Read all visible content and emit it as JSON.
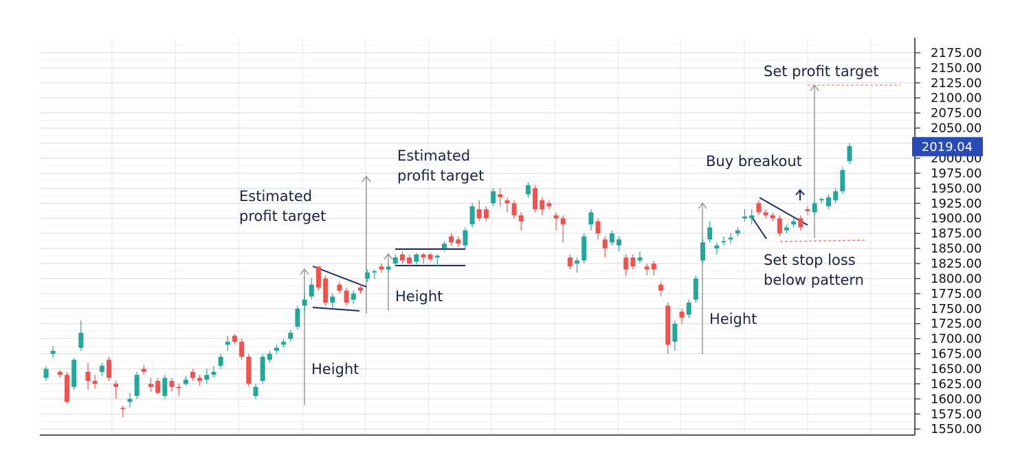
{
  "chart_data": {
    "type": "candlestick",
    "up_color": "#26a69a",
    "down_color": "#ef5350",
    "open": [
      1635,
      1675,
      1645,
      1640,
      1620,
      1685,
      1645,
      1630,
      1645,
      1665,
      1625,
      1585,
      1595,
      1605,
      1650,
      1625,
      1630,
      1605,
      1630,
      1620,
      1625,
      1645,
      1635,
      1632,
      1640,
      1655,
      1690,
      1705,
      1695,
      1670,
      1605,
      1630,
      1665,
      1680,
      1690,
      1700,
      1720,
      1755,
      1770,
      1820,
      1800,
      1760,
      1790,
      1780,
      1765,
      1785,
      1800,
      1810,
      1820,
      1815,
      1825,
      1840,
      1835,
      1828,
      1840,
      1840,
      1835,
      1850,
      1870,
      1865,
      1855,
      1890,
      1915,
      1915,
      1925,
      1940,
      1930,
      1925,
      1905,
      1940,
      1950,
      1930,
      1925,
      1905,
      1900,
      1835,
      1825,
      1830,
      1890,
      1895,
      1865,
      1860,
      1855,
      1835,
      1835,
      1830,
      1820,
      1825,
      1790,
      1755,
      1695,
      1745,
      1740,
      1765,
      1830,
      1865,
      1850,
      1860,
      1865,
      1875,
      1900,
      1900,
      1925,
      1910,
      1905,
      1900,
      1880,
      1890,
      1900,
      1915,
      1910,
      1930,
      1920,
      1930,
      1945,
      1995
    ],
    "high": [
      1655,
      1688,
      1648,
      1645,
      1668,
      1730,
      1660,
      1640,
      1660,
      1670,
      1630,
      1588,
      1610,
      1645,
      1657,
      1635,
      1635,
      1640,
      1635,
      1625,
      1638,
      1650,
      1640,
      1650,
      1655,
      1675,
      1705,
      1708,
      1700,
      1675,
      1625,
      1675,
      1680,
      1690,
      1700,
      1715,
      1755,
      1775,
      1800,
      1820,
      1805,
      1775,
      1795,
      1785,
      1780,
      1790,
      1815,
      1815,
      1825,
      1825,
      1840,
      1845,
      1840,
      1842,
      1843,
      1843,
      1840,
      1862,
      1875,
      1870,
      1885,
      1925,
      1930,
      1920,
      1950,
      1950,
      1935,
      1930,
      1910,
      1960,
      1955,
      1935,
      1930,
      1910,
      1905,
      1840,
      1835,
      1875,
      1915,
      1900,
      1870,
      1880,
      1870,
      1840,
      1840,
      1845,
      1825,
      1830,
      1795,
      1760,
      1730,
      1750,
      1765,
      1805,
      1865,
      1895,
      1860,
      1870,
      1875,
      1885,
      1915,
      1915,
      1930,
      1915,
      1910,
      1905,
      1890,
      1900,
      1905,
      1920,
      1930,
      1935,
      1940,
      1950,
      1985,
      2025
    ],
    "low": [
      1630,
      1668,
      1635,
      1592,
      1615,
      1680,
      1615,
      1617,
      1638,
      1630,
      1600,
      1570,
      1585,
      1600,
      1640,
      1612,
      1608,
      1600,
      1612,
      1605,
      1622,
      1630,
      1622,
      1625,
      1635,
      1650,
      1680,
      1690,
      1665,
      1620,
      1600,
      1625,
      1660,
      1675,
      1685,
      1695,
      1715,
      1745,
      1765,
      1780,
      1755,
      1750,
      1775,
      1755,
      1758,
      1775,
      1795,
      1800,
      1810,
      1810,
      1820,
      1825,
      1820,
      1822,
      1825,
      1828,
      1820,
      1845,
      1855,
      1852,
      1850,
      1885,
      1895,
      1895,
      1920,
      1920,
      1910,
      1900,
      1880,
      1935,
      1910,
      1905,
      1915,
      1880,
      1860,
      1815,
      1810,
      1825,
      1880,
      1865,
      1835,
      1855,
      1845,
      1805,
      1815,
      1825,
      1805,
      1805,
      1770,
      1675,
      1680,
      1725,
      1735,
      1760,
      1825,
      1860,
      1840,
      1855,
      1858,
      1870,
      1895,
      1890,
      1905,
      1900,
      1895,
      1870,
      1875,
      1885,
      1880,
      1905,
      1905,
      1925,
      1915,
      1925,
      1940,
      1990
    ],
    "close": [
      1650,
      1680,
      1640,
      1595,
      1665,
      1710,
      1630,
      1625,
      1655,
      1635,
      1620,
      1583,
      1600,
      1640,
      1645,
      1620,
      1610,
      1635,
      1620,
      1618,
      1632,
      1635,
      1630,
      1640,
      1645,
      1670,
      1695,
      1695,
      1670,
      1625,
      1620,
      1670,
      1675,
      1685,
      1695,
      1710,
      1750,
      1765,
      1790,
      1785,
      1760,
      1770,
      1780,
      1760,
      1775,
      1780,
      1810,
      1812,
      1815,
      1820,
      1835,
      1830,
      1825,
      1840,
      1835,
      1832,
      1838,
      1858,
      1860,
      1858,
      1880,
      1920,
      1900,
      1900,
      1945,
      1935,
      1925,
      1905,
      1895,
      1955,
      1915,
      1915,
      1920,
      1900,
      1890,
      1820,
      1830,
      1870,
      1910,
      1875,
      1850,
      1875,
      1865,
      1815,
      1820,
      1835,
      1815,
      1815,
      1780,
      1690,
      1725,
      1735,
      1760,
      1800,
      1860,
      1885,
      1855,
      1862,
      1868,
      1880,
      1903,
      1905,
      1910,
      1905,
      1900,
      1875,
      1885,
      1895,
      1885,
      1912,
      1925,
      1932,
      1935,
      1945,
      1980,
      2020
    ],
    "ylim": [
      1540,
      2200
    ],
    "yticks": [
      {
        "value": 1550,
        "label": "1550.00"
      },
      {
        "value": 1575,
        "label": "1575.00"
      },
      {
        "value": 1600,
        "label": "1600.00"
      },
      {
        "value": 1625,
        "label": "1625.00"
      },
      {
        "value": 1650,
        "label": "1650.00"
      },
      {
        "value": 1675,
        "label": "1675.00"
      },
      {
        "value": 1700,
        "label": "1700.00"
      },
      {
        "value": 1725,
        "label": "1725.00"
      },
      {
        "value": 1750,
        "label": "1750.00"
      },
      {
        "value": 1775,
        "label": "1775.00"
      },
      {
        "value": 1800,
        "label": "1800.00"
      },
      {
        "value": 1825,
        "label": "1825.00"
      },
      {
        "value": 1850,
        "label": "1850.00"
      },
      {
        "value": 1875,
        "label": "1875.00"
      },
      {
        "value": 1900,
        "label": "1900.00"
      },
      {
        "value": 1925,
        "label": "1925.00"
      },
      {
        "value": 1950,
        "label": "1950.00"
      },
      {
        "value": 1975,
        "label": "1975.00"
      },
      {
        "value": 2000,
        "label": "2000.00"
      },
      {
        "value": 2025,
        "label": "2025.00"
      },
      {
        "value": 2050,
        "label": "2050.00"
      },
      {
        "value": 2075,
        "label": "2075.00"
      },
      {
        "value": 2100,
        "label": "2100.00"
      },
      {
        "value": 2125,
        "label": "2125.00"
      },
      {
        "value": 2150,
        "label": "2150.00"
      },
      {
        "value": 2175,
        "label": "2175.00"
      }
    ],
    "grid": true,
    "last_price": 2019.04,
    "last_price_color": "#2a4bb5",
    "annotations": [
      "Estimated profit target",
      "Height",
      "Estimated profit target",
      "Height",
      "Height",
      "Buy breakout",
      "Set profit target",
      "Set stop loss below pattern"
    ]
  }
}
